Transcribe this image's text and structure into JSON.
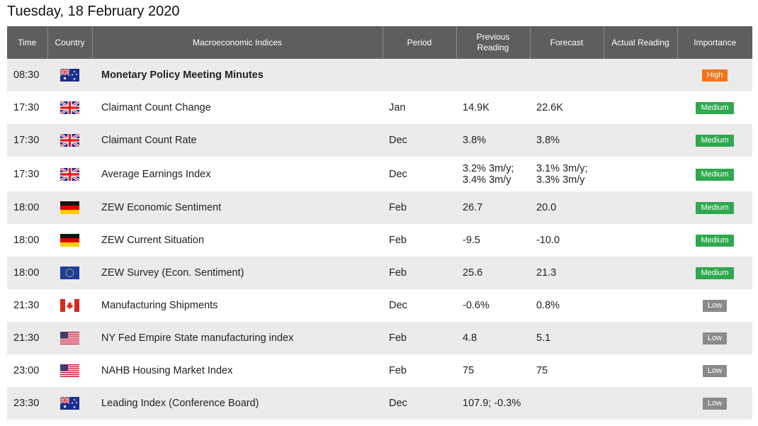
{
  "page": {
    "title": "Tuesday, 18 February 2020"
  },
  "table": {
    "headers": {
      "time": "Time",
      "country": "Country",
      "index": "Macroeconomic Indices",
      "period": "Period",
      "previous_line1": "Previous",
      "previous_line2": "Reading",
      "forecast": "Forecast",
      "actual": "Actual Reading",
      "importance": "Importance"
    },
    "rows": [
      {
        "time": "08:30",
        "country_flag": "australia-flag-icon",
        "index": "Monetary Policy Meeting Minutes",
        "period": "",
        "previous": [
          "",
          ""
        ],
        "forecast": [
          "",
          ""
        ],
        "actual": "",
        "importance": "High"
      },
      {
        "time": "17:30",
        "country_flag": "uk-flag-icon",
        "index": "Claimant Count Change",
        "period": "Jan",
        "previous": [
          "14.9K",
          ""
        ],
        "forecast": [
          "22.6K",
          ""
        ],
        "actual": "",
        "importance": "Medium"
      },
      {
        "time": "17:30",
        "country_flag": "uk-flag-icon",
        "index": "Claimant Count Rate",
        "period": "Dec",
        "previous": [
          "3.8%",
          ""
        ],
        "forecast": [
          "3.8%",
          ""
        ],
        "actual": "",
        "importance": "Medium"
      },
      {
        "time": "17:30",
        "country_flag": "uk-flag-icon",
        "index": "Average Earnings Index",
        "period": "Dec",
        "previous": [
          "3.2% 3m/y;",
          "3.4% 3m/y"
        ],
        "forecast": [
          "3.1% 3m/y;",
          "3.3% 3m/y"
        ],
        "actual": "",
        "importance": "Medium"
      },
      {
        "time": "18:00",
        "country_flag": "germany-flag-icon",
        "index": "ZEW Economic Sentiment",
        "period": "Feb",
        "previous": [
          "26.7",
          ""
        ],
        "forecast": [
          "20.0",
          ""
        ],
        "actual": "",
        "importance": "Medium"
      },
      {
        "time": "18:00",
        "country_flag": "germany-flag-icon",
        "index": "ZEW Current Situation",
        "period": "Feb",
        "previous": [
          "-9.5",
          ""
        ],
        "forecast": [
          "-10.0",
          ""
        ],
        "actual": "",
        "importance": "Medium"
      },
      {
        "time": "18:00",
        "country_flag": "eu-flag-icon",
        "index": "ZEW Survey (Econ. Sentiment)",
        "period": "Feb",
        "previous": [
          "25.6",
          ""
        ],
        "forecast": [
          "21.3",
          ""
        ],
        "actual": "",
        "importance": "Medium"
      },
      {
        "time": "21:30",
        "country_flag": "canada-flag-icon",
        "index": "Manufacturing Shipments",
        "period": "Dec",
        "previous": [
          "-0.6%",
          ""
        ],
        "forecast": [
          "0.8%",
          ""
        ],
        "actual": "",
        "importance": "Low"
      },
      {
        "time": "21:30",
        "country_flag": "usa-flag-icon",
        "index": "NY Fed Empire State manufacturing index",
        "period": "Feb",
        "previous": [
          "4.8",
          ""
        ],
        "forecast": [
          "5.1",
          ""
        ],
        "actual": "",
        "importance": "Low"
      },
      {
        "time": "23:00",
        "country_flag": "usa-flag-icon",
        "index": "NAHB Housing Market Index",
        "period": "Feb",
        "previous": [
          "75",
          ""
        ],
        "forecast": [
          "75",
          ""
        ],
        "actual": "",
        "importance": "Low"
      },
      {
        "time": "23:30",
        "country_flag": "australia-flag-icon",
        "index": "Leading Index (Conference Board)",
        "period": "Dec",
        "previous": [
          "107.9; -0.3%",
          ""
        ],
        "forecast": [
          "",
          ""
        ],
        "actual": "",
        "importance": "Low"
      }
    ]
  },
  "colors": {
    "header_bg": "#5e5e5e",
    "row_alt_bg": "#ebebeb",
    "importance_high": "#f47216",
    "importance_medium": "#2fa84f",
    "importance_low": "#8a8a8a"
  }
}
